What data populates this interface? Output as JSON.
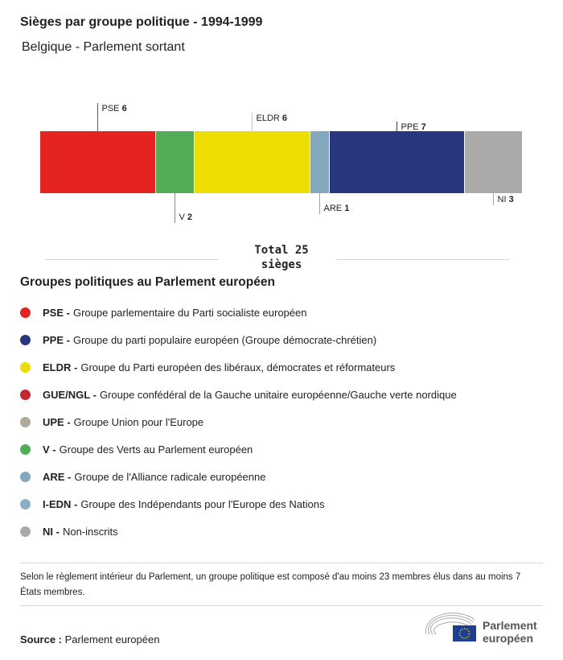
{
  "header": {
    "title": "Sièges par groupe politique - 1994-1999",
    "subtitle": "Belgique - Parlement sortant"
  },
  "chart_data": {
    "type": "bar",
    "orientation": "horizontal-stacked",
    "categories": [
      "PSE",
      "V",
      "ELDR",
      "ARE",
      "PPE",
      "NI"
    ],
    "values": [
      6,
      2,
      6,
      1,
      7,
      3
    ],
    "colors": [
      "#e52421",
      "#52ad56",
      "#ecde00",
      "#84a9bf",
      "#27367d",
      "#aaaaaa"
    ],
    "label_side": [
      "top",
      "bottom",
      "top",
      "bottom",
      "top",
      "bottom"
    ],
    "total_label": "Total 25",
    "total_unit": "sièges"
  },
  "legend": {
    "title": "Groupes politiques au Parlement européen",
    "items": [
      {
        "abbr": "PSE -",
        "name": "Groupe parlementaire du Parti socialiste européen",
        "color": "#e52421"
      },
      {
        "abbr": "PPE -",
        "name": "Groupe du parti populaire européen (Groupe démocrate-chrétien)",
        "color": "#27367d"
      },
      {
        "abbr": "ELDR -",
        "name": "Groupe du Parti européen des libéraux, démocrates et réformateurs",
        "color": "#ecde00"
      },
      {
        "abbr": "GUE/NGL -",
        "name": "Groupe confédéral de la Gauche unitaire européenne/Gauche verte nordique",
        "color": "#c1272d"
      },
      {
        "abbr": "UPE -",
        "name": "Groupe Union pour l'Europe",
        "color": "#b1a99c"
      },
      {
        "abbr": "V -",
        "name": "Groupe des Verts au Parlement européen",
        "color": "#52ad56"
      },
      {
        "abbr": "ARE -",
        "name": "Groupe de l'Alliance radicale européenne",
        "color": "#84a9bf"
      },
      {
        "abbr": "I-EDN -",
        "name": "Groupe des Indépendants pour l'Europe des Nations",
        "color": "#8bb0c6"
      },
      {
        "abbr": "NI -",
        "name": "Non-inscrits",
        "color": "#aaaaaa"
      }
    ]
  },
  "footer": {
    "note": "Selon le règlement intérieur du Parlement, un groupe politique est composé d'au moins 23 membres élus dans au moins 7 États membres.",
    "source_label": "Source :",
    "source": "Parlement européen",
    "logo_text": [
      "Parlement",
      "européen"
    ]
  }
}
